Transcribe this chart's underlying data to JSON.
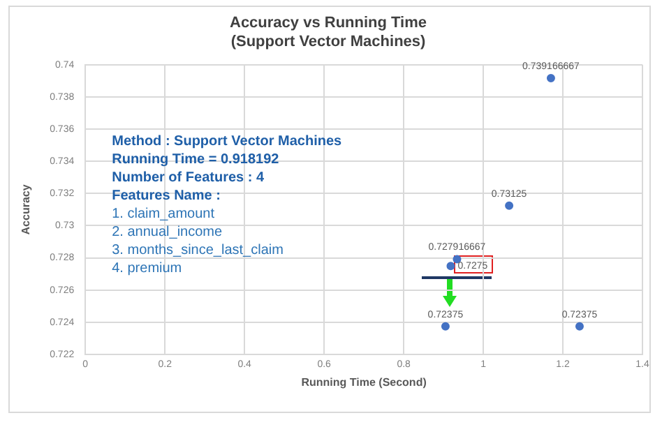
{
  "chart_data": {
    "type": "scatter",
    "title": "Accuracy vs Running Time",
    "subtitle": "(Support Vector Machines)",
    "xlabel": "Running Time (Second)",
    "ylabel": "Accuracy",
    "x": [
      1.17,
      1.065,
      0.934,
      0.918192,
      0.905,
      1.242
    ],
    "values": [
      0.739166667,
      0.73125,
      0.727916667,
      0.7275,
      0.72375,
      0.72375
    ],
    "color": "#4472c4",
    "marker": "circle",
    "data_labels": true,
    "grid": true,
    "legend": false,
    "xlim": [
      0,
      1.4
    ],
    "xticks": [
      0,
      0.2,
      0.4,
      0.6,
      0.8,
      1,
      1.2,
      1.4
    ],
    "ylim": [
      0.722,
      0.74
    ],
    "yticks": [
      0.722,
      0.724,
      0.726,
      0.728,
      0.73,
      0.732,
      0.734,
      0.736,
      0.738,
      0.74
    ],
    "annotations": [
      "Method : Support Vector Machines",
      "Running Time = 0.918192",
      "Number of Features : 4",
      "Features Name :",
      "1. claim_amount",
      "2. annual_income",
      "3. months_since_last_claim",
      "4. premium"
    ]
  }
}
